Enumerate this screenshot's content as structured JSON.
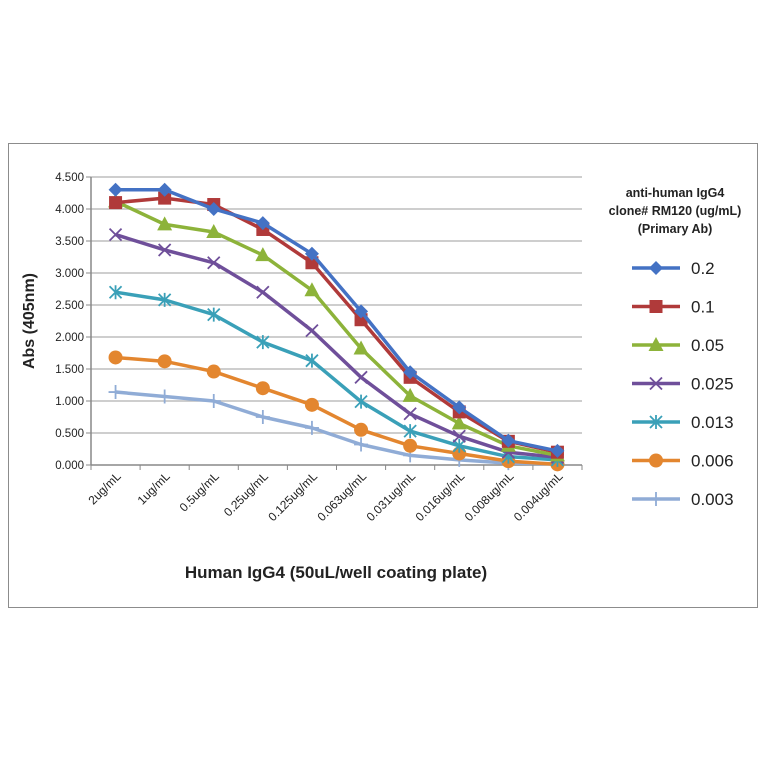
{
  "chart_data": {
    "type": "line",
    "title": "",
    "xlabel": "Human IgG4 (50uL/well coating plate)",
    "ylabel": "Abs (405nm)",
    "ylim": [
      0,
      4.5
    ],
    "yticks": [
      "0.000",
      "0.500",
      "1.000",
      "1.500",
      "2.000",
      "2.500",
      "3.000",
      "3.500",
      "4.000",
      "4.500"
    ],
    "grid": true,
    "legend_position": "right",
    "legend_title": [
      "anti-human IgG4",
      "clone# RM120 (ug/mL)",
      "(Primary Ab)"
    ],
    "categories": [
      "2ug/mL",
      "1ug/mL",
      "0.5ug/mL",
      "0.25ug/mL",
      "0.125ug/mL",
      "0.063ug/mL",
      "0.031ug/mL",
      "0.016ug/mL",
      "0.008ug/mL",
      "0.004ug/mL"
    ],
    "series": [
      {
        "name": "0.2",
        "color": "#4472c4",
        "marker": "diamond",
        "values": [
          4.3,
          4.3,
          4.0,
          3.78,
          3.3,
          2.4,
          1.45,
          0.9,
          0.38,
          0.22
        ]
      },
      {
        "name": "0.1",
        "color": "#b03a3a",
        "marker": "square",
        "values": [
          4.1,
          4.17,
          4.07,
          3.68,
          3.16,
          2.27,
          1.37,
          0.83,
          0.37,
          0.2
        ]
      },
      {
        "name": "0.05",
        "color": "#8db33a",
        "marker": "triangle",
        "values": [
          4.12,
          3.76,
          3.64,
          3.28,
          2.73,
          1.82,
          1.08,
          0.65,
          0.3,
          0.15
        ]
      },
      {
        "name": "0.025",
        "color": "#6f4f9a",
        "marker": "x",
        "values": [
          3.6,
          3.36,
          3.16,
          2.7,
          2.1,
          1.37,
          0.8,
          0.45,
          0.2,
          0.12
        ]
      },
      {
        "name": "0.013",
        "color": "#3aa0b8",
        "marker": "star",
        "values": [
          2.7,
          2.58,
          2.35,
          1.92,
          1.63,
          0.99,
          0.53,
          0.3,
          0.13,
          0.08
        ]
      },
      {
        "name": "0.006",
        "color": "#e3862f",
        "marker": "circle",
        "values": [
          1.68,
          1.62,
          1.46,
          1.2,
          0.94,
          0.55,
          0.3,
          0.18,
          0.06,
          0.01
        ]
      },
      {
        "name": "0.003",
        "color": "#90acd6",
        "marker": "plus",
        "values": [
          1.14,
          1.07,
          1.0,
          0.75,
          0.58,
          0.32,
          0.15,
          0.08,
          0.03,
          0.02
        ]
      }
    ]
  }
}
